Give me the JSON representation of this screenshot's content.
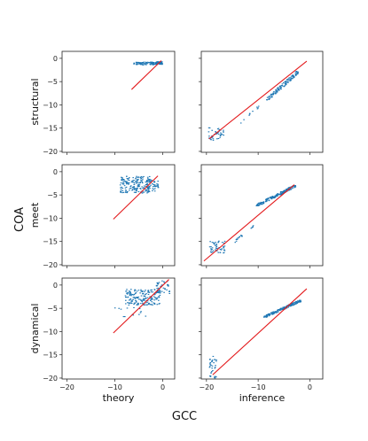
{
  "chart_data": {
    "type": "scatter",
    "figure_xlabel": "GCC",
    "figure_ylabel": "COA",
    "row_labels": [
      "structural",
      "meet",
      "dynamical"
    ],
    "col_labels": [
      "theory",
      "inference"
    ],
    "xlim": [
      -21,
      2.5
    ],
    "ylim": [
      -20.2,
      1.5
    ],
    "xticks": [
      -20,
      -10,
      0
    ],
    "yticks": [
      0,
      -5,
      -10,
      -15,
      -20
    ],
    "xtick_labels": [
      "−20",
      "−10",
      "0"
    ],
    "ytick_labels": [
      "0",
      "−5",
      "−10",
      "−15",
      "−20"
    ],
    "colors": {
      "points": "#1f77b4",
      "line": "#e31a1c"
    },
    "panels": [
      {
        "row": 0,
        "col": 0,
        "line": [
          [
            -6.5,
            -6.7
          ],
          [
            -0.3,
            -0.5
          ]
        ],
        "clusters": [
          {
            "x": [
              -6.2,
              -0.2
            ],
            "y": [
              -1.3,
              -0.7
            ],
            "n": 90
          },
          {
            "x": [
              -1.6,
              -0.2
            ],
            "y": [
              -1.2,
              -0.6
            ],
            "n": 40
          }
        ]
      },
      {
        "row": 0,
        "col": 1,
        "line": [
          [
            -19.5,
            -17.3
          ],
          [
            -0.6,
            -0.6
          ]
        ],
        "clusters": [
          {
            "x": [
              -19.8,
              -16.8
            ],
            "y": [
              -17.5,
              -14.8
            ],
            "n": 40
          },
          {
            "x": [
              -8.5,
              -2.2
            ],
            "y": [
              -8.8,
              -2.6
            ],
            "n": 120,
            "diag": true
          },
          {
            "x": [
              -13.5,
              -10
            ],
            "y": [
              -13.8,
              -10.2
            ],
            "n": 10,
            "diag": true
          }
        ]
      },
      {
        "row": 1,
        "col": 0,
        "line": [
          [
            -10.3,
            -10.2
          ],
          [
            -1.0,
            -0.9
          ]
        ],
        "clusters": [
          {
            "x": [
              -9.0,
              -2.7
            ],
            "y": [
              -4.5,
              -0.8
            ],
            "n": 180
          },
          {
            "x": [
              -3.5,
              -0.9
            ],
            "y": [
              -4.2,
              -1.5
            ],
            "n": 40
          }
        ]
      },
      {
        "row": 1,
        "col": 1,
        "line": [
          [
            -20.5,
            -19.2
          ],
          [
            -3.0,
            -2.8
          ]
        ],
        "clusters": [
          {
            "x": [
              -19.5,
              -16.5
            ],
            "y": [
              -17.5,
              -14.7
            ],
            "n": 50
          },
          {
            "x": [
              -10.5,
              -2.9
            ],
            "y": [
              -7.2,
              -2.9
            ],
            "n": 180,
            "diag": true
          },
          {
            "x": [
              -15,
              -11
            ],
            "y": [
              -15.2,
              -11.5
            ],
            "n": 18,
            "diag": true
          }
        ]
      },
      {
        "row": 2,
        "col": 0,
        "line": [
          [
            -10.3,
            -10.3
          ],
          [
            1.3,
            1.2
          ]
        ],
        "clusters": [
          {
            "x": [
              -8.0,
              -0.5
            ],
            "y": [
              -4.2,
              -0.8
            ],
            "n": 180
          },
          {
            "x": [
              -1.5,
              1.3
            ],
            "y": [
              -2.0,
              1.0
            ],
            "n": 40
          },
          {
            "x": [
              -10.2,
              -3.0
            ],
            "y": [
              -7.0,
              -3.5
            ],
            "n": 15
          }
        ]
      },
      {
        "row": 2,
        "col": 1,
        "line": [
          [
            -18.8,
            -19.3
          ],
          [
            -0.6,
            -0.8
          ]
        ],
        "clusters": [
          {
            "x": [
              -19.6,
              -18.2
            ],
            "y": [
              -20.0,
              -15.2
            ],
            "n": 35
          },
          {
            "x": [
              -9.0,
              -1.8
            ],
            "y": [
              -6.8,
              -3.2
            ],
            "n": 150,
            "diag": true
          }
        ]
      }
    ]
  }
}
